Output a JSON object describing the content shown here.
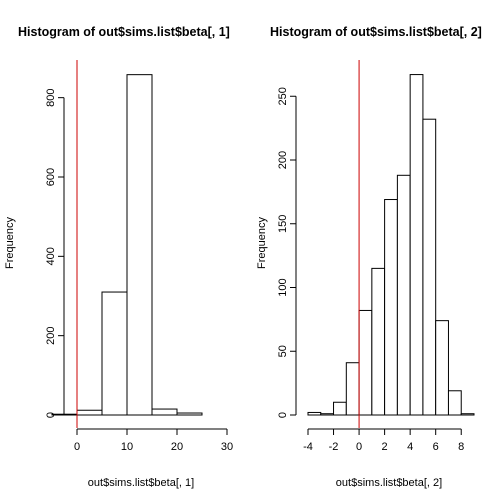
{
  "colors": {
    "bar_fill": "#ffffff",
    "bar_stroke": "#000000",
    "vline": "#cc0000",
    "background": "#ffffff"
  },
  "chart_data": [
    {
      "type": "bar",
      "title": "Histogram of out$sims.list$beta[, 1]",
      "xlabel": "out$sims.list$beta[, 1]",
      "ylabel": "Frequency",
      "xlim": [
        -5,
        35
      ],
      "ylim": [
        0,
        900
      ],
      "xticks": [
        0,
        10,
        20,
        30
      ],
      "yticks": [
        0,
        200,
        400,
        600,
        800
      ],
      "bin_edges": [
        -5,
        0,
        5,
        10,
        15,
        20,
        25
      ],
      "values": [
        2,
        12,
        310,
        858,
        15,
        5
      ],
      "vline": 0
    },
    {
      "type": "bar",
      "title": "Histogram of out$sims.list$beta[, 2]",
      "xlabel": "out$sims.list$beta[, 2]",
      "ylabel": "Frequency",
      "xlim": [
        -4,
        9
      ],
      "ylim": [
        0,
        280
      ],
      "xticks": [
        -4,
        -2,
        0,
        2,
        4,
        6,
        8
      ],
      "yticks": [
        0,
        50,
        100,
        150,
        200,
        250
      ],
      "bin_edges": [
        -4,
        -3,
        -2,
        -1,
        0,
        1,
        2,
        3,
        4,
        5,
        6,
        7,
        8,
        9
      ],
      "values": [
        2,
        1,
        10,
        41,
        82,
        115,
        169,
        188,
        267,
        232,
        74,
        19,
        1
      ],
      "vline": 0
    }
  ]
}
